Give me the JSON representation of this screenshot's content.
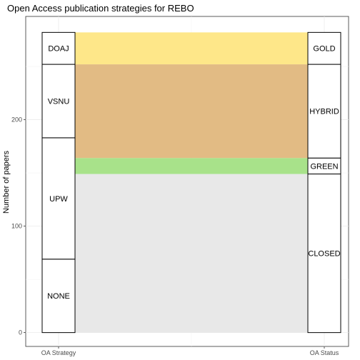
{
  "chart_data": {
    "type": "alluvial",
    "title": "Open Access publication strategies for REBO",
    "xlabel": "",
    "ylabel": "Number of papers",
    "axes": [
      "OA Strategy",
      "OA Status"
    ],
    "y_ticks": [
      0,
      100,
      200
    ],
    "ylim": [
      0,
      280
    ],
    "grid": true,
    "left_axis": {
      "name": "OA Strategy",
      "strata": [
        {
          "label": "NONE",
          "value": 69
        },
        {
          "label": "UPW",
          "value": 114
        },
        {
          "label": "VSNU",
          "value": 69
        },
        {
          "label": "DOAJ",
          "value": 30
        }
      ]
    },
    "right_axis": {
      "name": "OA Status",
      "strata": [
        {
          "label": "CLOSED",
          "value": 149
        },
        {
          "label": "GREEN",
          "value": 15
        },
        {
          "label": "HYBRID",
          "value": 88
        },
        {
          "label": "GOLD",
          "value": 30
        }
      ]
    },
    "flows": [
      {
        "status": "CLOSED",
        "value": 149,
        "color": "#e8e8e8"
      },
      {
        "status": "GREEN",
        "value": 15,
        "color": "#a8e28a"
      },
      {
        "status": "HYBRID",
        "value": 88,
        "color": "#e2bb84"
      },
      {
        "status": "GOLD",
        "value": 30,
        "color": "#fee789"
      }
    ]
  }
}
